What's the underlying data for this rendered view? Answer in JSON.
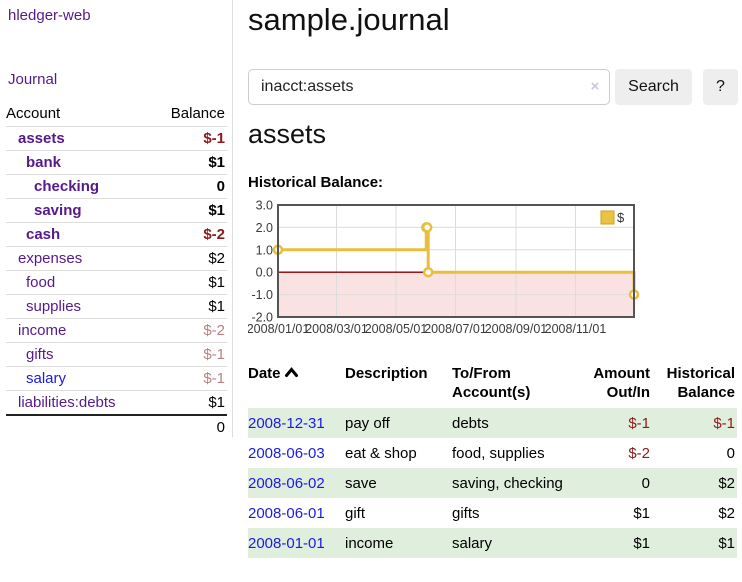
{
  "app": {
    "brand": "hledger-web"
  },
  "sidebar": {
    "journal_link": "Journal",
    "accounts_table": {
      "col_account": "Account",
      "col_balance": "Balance",
      "rows": [
        {
          "label": "assets",
          "depth": 1,
          "bold": true,
          "link_color": "purple",
          "balance": "$-1",
          "balance_class": "neg-strong"
        },
        {
          "label": "bank",
          "depth": 2,
          "bold": true,
          "link_color": "purple",
          "balance": "$1",
          "balance_class": "pos-strong"
        },
        {
          "label": "checking",
          "depth": 3,
          "bold": true,
          "link_color": "purple",
          "balance": "0",
          "balance_class": "pos-strong"
        },
        {
          "label": "saving",
          "depth": 3,
          "bold": true,
          "link_color": "purple",
          "balance": "$1",
          "balance_class": "pos-strong"
        },
        {
          "label": "cash",
          "depth": 2,
          "bold": true,
          "link_color": "purple",
          "balance": "$-2",
          "balance_class": "neg-strong"
        },
        {
          "label": "expenses",
          "depth": 1,
          "bold": false,
          "link_color": "purple",
          "balance": "$2",
          "balance_class": "pos"
        },
        {
          "label": "food",
          "depth": 2,
          "bold": false,
          "link_color": "purple",
          "balance": "$1",
          "balance_class": "pos"
        },
        {
          "label": "supplies",
          "depth": 2,
          "bold": false,
          "link_color": "purple",
          "balance": "$1",
          "balance_class": "pos"
        },
        {
          "label": "income",
          "depth": 1,
          "bold": false,
          "link_color": "purple",
          "balance": "$-2",
          "balance_class": "neg-muted"
        },
        {
          "label": "gifts",
          "depth": 2,
          "bold": false,
          "link_color": "purple",
          "balance": "$-1",
          "balance_class": "neg-muted"
        },
        {
          "label": "salary",
          "depth": 2,
          "bold": false,
          "link_color": "blue",
          "balance": "$-1",
          "balance_class": "neg-muted"
        },
        {
          "label": "liabilities:debts",
          "depth": 1,
          "bold": false,
          "link_color": "purple",
          "balance": "$1",
          "balance_class": "pos"
        }
      ],
      "total": "0"
    }
  },
  "main": {
    "title": "sample.journal",
    "search": {
      "value": "inacct:assets",
      "clear": "×",
      "button": "Search",
      "help": "?"
    },
    "account_heading": "assets",
    "chart_heading": "Historical Balance:",
    "register": {
      "headers": {
        "date": "Date",
        "description": "Description",
        "accounts": "To/From Account(s)",
        "amount": "Amount Out/In",
        "balance": "Historical Balance"
      },
      "rows": [
        {
          "date": "2008-12-31",
          "description": "pay off",
          "accounts": "debts",
          "amount": "$-1",
          "amount_class": "neg",
          "balance": "$-1",
          "balance_class": "neg",
          "shaded": true
        },
        {
          "date": "2008-06-03",
          "description": "eat & shop",
          "accounts": "food, supplies",
          "amount": "$-2",
          "amount_class": "neg",
          "balance": "0",
          "balance_class": "pos",
          "shaded": false
        },
        {
          "date": "2008-06-02",
          "description": "save",
          "accounts": "saving, checking",
          "amount": "0",
          "amount_class": "pos",
          "balance": "$2",
          "balance_class": "pos",
          "shaded": true
        },
        {
          "date": "2008-06-01",
          "description": "gift",
          "accounts": "gifts",
          "amount": "$1",
          "amount_class": "pos",
          "balance": "$2",
          "balance_class": "pos",
          "shaded": false
        },
        {
          "date": "2008-01-01",
          "description": "income",
          "accounts": "salary",
          "amount": "$1",
          "amount_class": "pos",
          "balance": "$1",
          "balance_class": "pos",
          "shaded": true
        }
      ]
    }
  },
  "chart_data": {
    "type": "line",
    "title": "Historical Balance:",
    "step": true,
    "series": [
      {
        "name": "$",
        "color": "#edc240",
        "points": [
          [
            "2008-01-01",
            1
          ],
          [
            "2008-06-01",
            2
          ],
          [
            "2008-06-02",
            2
          ],
          [
            "2008-06-03",
            0
          ],
          [
            "2008-12-31",
            -1
          ]
        ]
      }
    ],
    "x_start": "2008-01-01",
    "x_range_days": 365,
    "x_ticks": [
      {
        "day": 0,
        "label": "2008/01/01"
      },
      {
        "day": 60,
        "label": "2008/03/01"
      },
      {
        "day": 121,
        "label": "2008/05/01"
      },
      {
        "day": 182,
        "label": "2008/07/01"
      },
      {
        "day": 244,
        "label": "2008/09/01"
      },
      {
        "day": 305,
        "label": "2008/11/01"
      }
    ],
    "y_ticks": [
      "3.0",
      "2.0",
      "1.0",
      "0.0",
      "-1.0",
      "-2.0"
    ],
    "ylim": [
      -2,
      3
    ],
    "grid": true,
    "legend": {
      "label": "$",
      "position": "top-right"
    },
    "colors": {
      "line": "#e9bd3e",
      "marker_fill": "#ffffff",
      "negative_fill": "#fbe2e2",
      "zero_line": "#8b0000",
      "grid": "#dcdcdc",
      "border": "#545454",
      "tick_text": "#3a3a3a"
    }
  }
}
